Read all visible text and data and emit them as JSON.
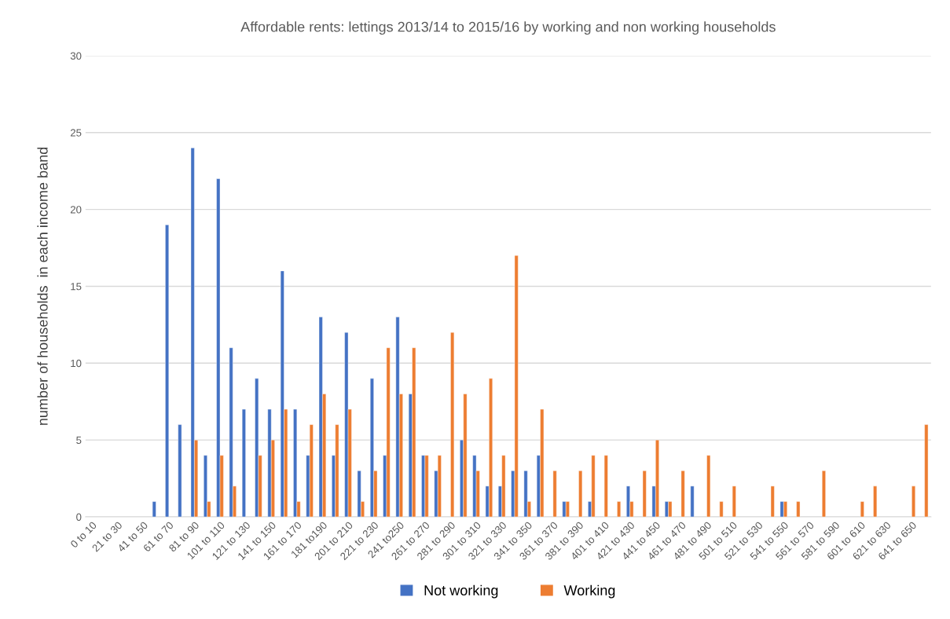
{
  "chart_data": {
    "type": "bar",
    "title": "Affordable rents: lettings 2013/14 to 2015/16 by working and non working households",
    "ylabel": "number of households  in each income band",
    "categories": [
      "0 to 10",
      null,
      "21 to 30",
      null,
      "41 to 50",
      null,
      "61 to 70",
      null,
      "81 to 90",
      null,
      "101 to 110",
      null,
      "121 to 130",
      null,
      "141 to 150",
      null,
      "161 to 170",
      null,
      "181 to190",
      null,
      "201 to 210",
      null,
      "221 to 230",
      null,
      "241 to250",
      null,
      "261 to 270",
      null,
      "281 to 290",
      null,
      "301 to 310",
      null,
      "321 to 330",
      null,
      "341 to 350",
      null,
      "361 to 370",
      null,
      "381 to 390",
      null,
      "401 to 410",
      null,
      "421 to 430",
      null,
      "441 to 450",
      null,
      "461 to 470",
      null,
      "481 to 490",
      null,
      "501 to 510",
      null,
      "521 to 530",
      null,
      "541 to 550",
      null,
      "561 to 570",
      null,
      "581 to 590",
      null,
      "601 to 610",
      null,
      "621 to 630",
      null,
      "641 to 650",
      null
    ],
    "series": [
      {
        "name": "Not working",
        "color": "#4472c4",
        "values": [
          null,
          null,
          null,
          null,
          null,
          1,
          19,
          6,
          24,
          4,
          22,
          11,
          7,
          9,
          7,
          16,
          7,
          4,
          13,
          4,
          12,
          3,
          9,
          4,
          13,
          8,
          4,
          3,
          null,
          5,
          4,
          2,
          2,
          3,
          3,
          4,
          null,
          1,
          null,
          1,
          null,
          null,
          2,
          null,
          2,
          1,
          null,
          2,
          null,
          null,
          null,
          null,
          null,
          null,
          1,
          null,
          null,
          null,
          null,
          null,
          null,
          null,
          null,
          null,
          null,
          null
        ]
      },
      {
        "name": "Working",
        "color": "#ed7d31",
        "values": [
          null,
          null,
          null,
          null,
          null,
          null,
          null,
          null,
          5,
          1,
          4,
          2,
          null,
          4,
          5,
          7,
          1,
          6,
          8,
          6,
          7,
          1,
          3,
          11,
          8,
          11,
          4,
          4,
          12,
          8,
          3,
          9,
          4,
          17,
          1,
          7,
          3,
          1,
          3,
          4,
          4,
          1,
          1,
          3,
          5,
          1,
          3,
          null,
          4,
          1,
          2,
          null,
          null,
          2,
          1,
          1,
          null,
          3,
          null,
          null,
          1,
          2,
          null,
          null,
          2,
          6
        ]
      }
    ],
    "ylim": [
      0,
      30
    ],
    "yticks": [
      0,
      5,
      10,
      15,
      20,
      25,
      30
    ],
    "grid": "y",
    "legend": "bottom"
  }
}
